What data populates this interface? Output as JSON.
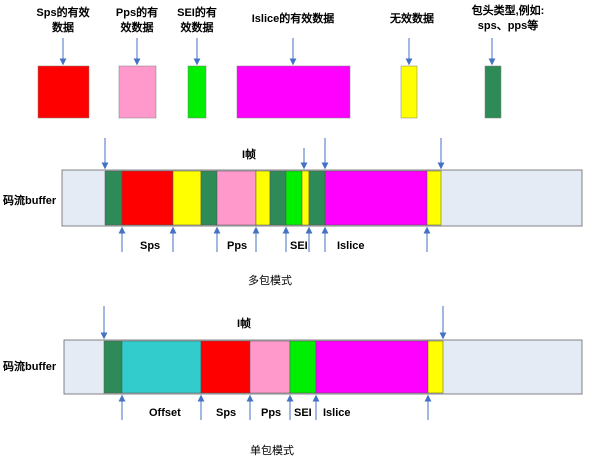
{
  "colors": {
    "sps": "#ff0000",
    "pps": "#ff99cc",
    "sei": "#00ee00",
    "islice": "#ff00ff",
    "invalid": "#ffff00",
    "header": "#2e8b57",
    "offset": "#33cccc",
    "buffer_bg": "#e4ebf5",
    "arrow": "#4472c4"
  },
  "legend": {
    "sps": [
      "Sps的有效",
      "数据"
    ],
    "pps": [
      "Pps的有",
      "效数据"
    ],
    "sei": [
      "SEI的有",
      "效数据"
    ],
    "islice": "Islice的有效数据",
    "invalid": "无效数据",
    "header": [
      "包头类型,例如:",
      "sps、pps等"
    ]
  },
  "multi": {
    "frame_label": "I帧",
    "buffer_label": "码流buffer",
    "sub_labels": {
      "sps": "Sps",
      "pps": "Pps",
      "sei": "SEI",
      "islice": "Islice"
    },
    "caption": "多包模式"
  },
  "single": {
    "frame_label": "I帧",
    "buffer_label": "码流buffer",
    "sub_labels": {
      "offset": "Offset",
      "sps": "Sps",
      "pps": "Pps",
      "sei": "SEI",
      "islice": "Islice"
    },
    "caption": "单包模式"
  }
}
